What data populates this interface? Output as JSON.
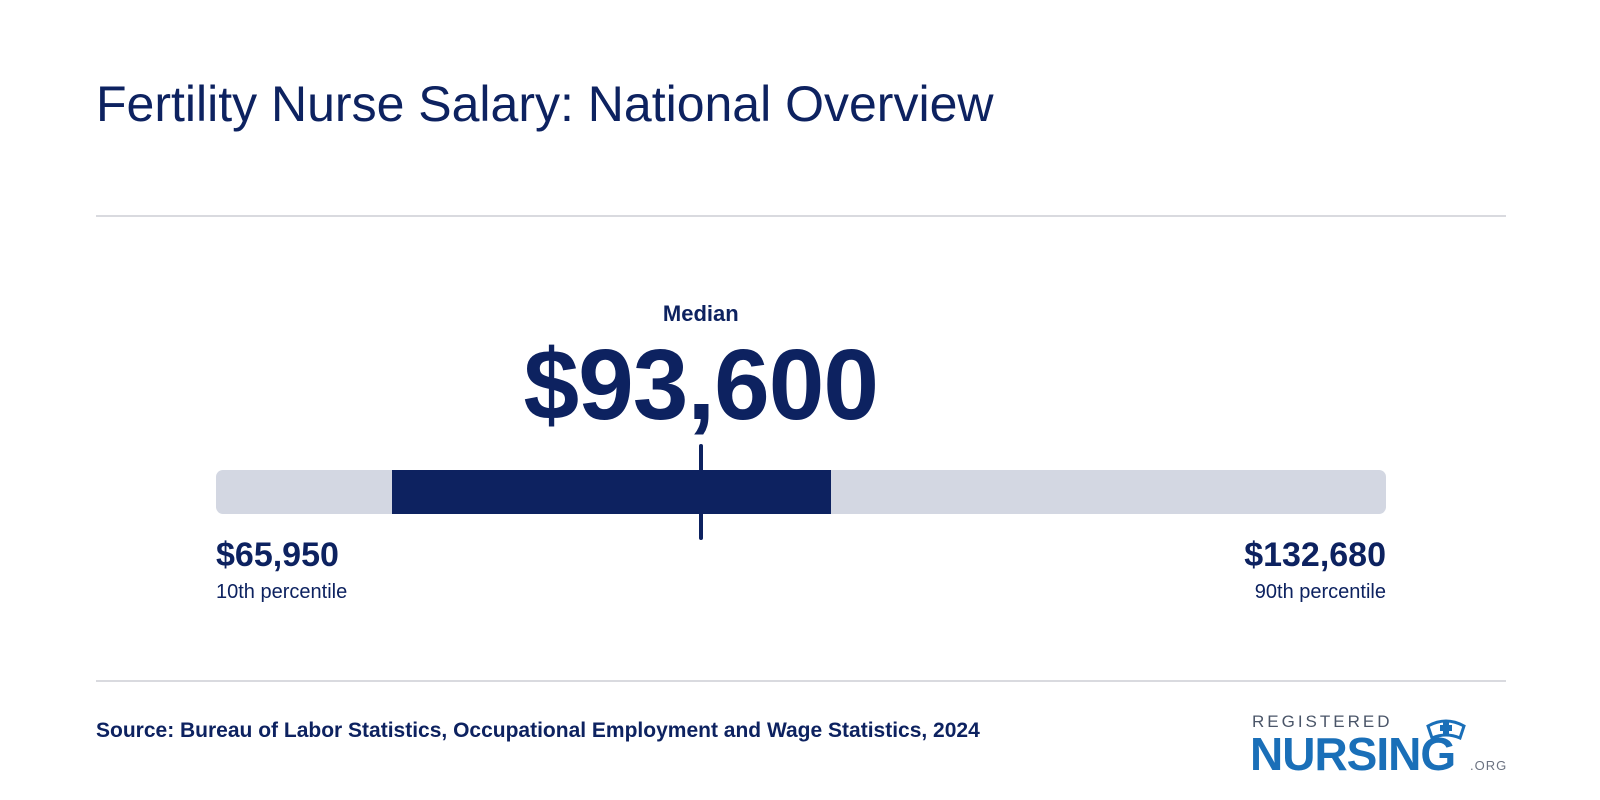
{
  "title": "Fertility Nurse Salary: National Overview",
  "colors": {
    "primary": "#0d2260",
    "track": "#d3d7e2",
    "rule": "#d9dadf",
    "logo_blue": "#1a6fb8"
  },
  "salary_range": {
    "min": 65950,
    "median": 93600,
    "max": 132680,
    "highlight_from": 76000,
    "highlight_to": 101000,
    "median_label": "Median",
    "median_display": "$93,600",
    "low_display": "$65,950",
    "low_caption": "10th percentile",
    "high_display": "$132,680",
    "high_caption": "90th percentile"
  },
  "source": "Source: Bureau of Labor Statistics, Occupational Employment and Wage Statistics, 2024",
  "logo": {
    "top_text": "REGISTERED",
    "main_text": "NURSING",
    "suffix": ".ORG",
    "icon": "nurse-cap-icon"
  }
}
